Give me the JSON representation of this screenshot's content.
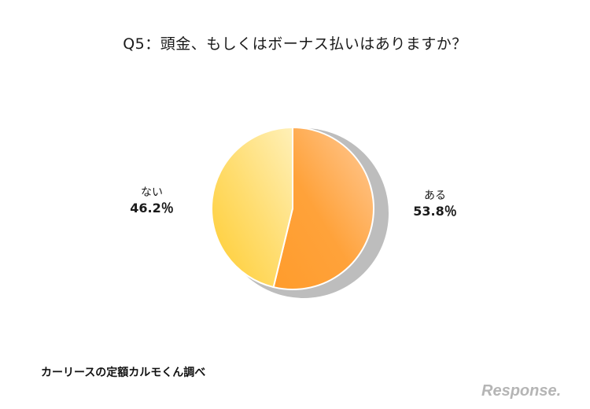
{
  "chart_data": {
    "type": "pie",
    "title": "Q5：頭金、もしくはボーナス払いはありますか？",
    "categories": [
      "ある",
      "ない"
    ],
    "values": [
      53.8,
      46.2
    ],
    "value_labels": [
      "53.8％",
      "46.2％"
    ],
    "colors": [
      "#FFA23A",
      "#FFD54F"
    ],
    "legend": "none"
  },
  "source_note": "カーリースの定額カルモくん調べ",
  "brand": {
    "text": "Response.",
    "color": "#B5B5B5"
  }
}
